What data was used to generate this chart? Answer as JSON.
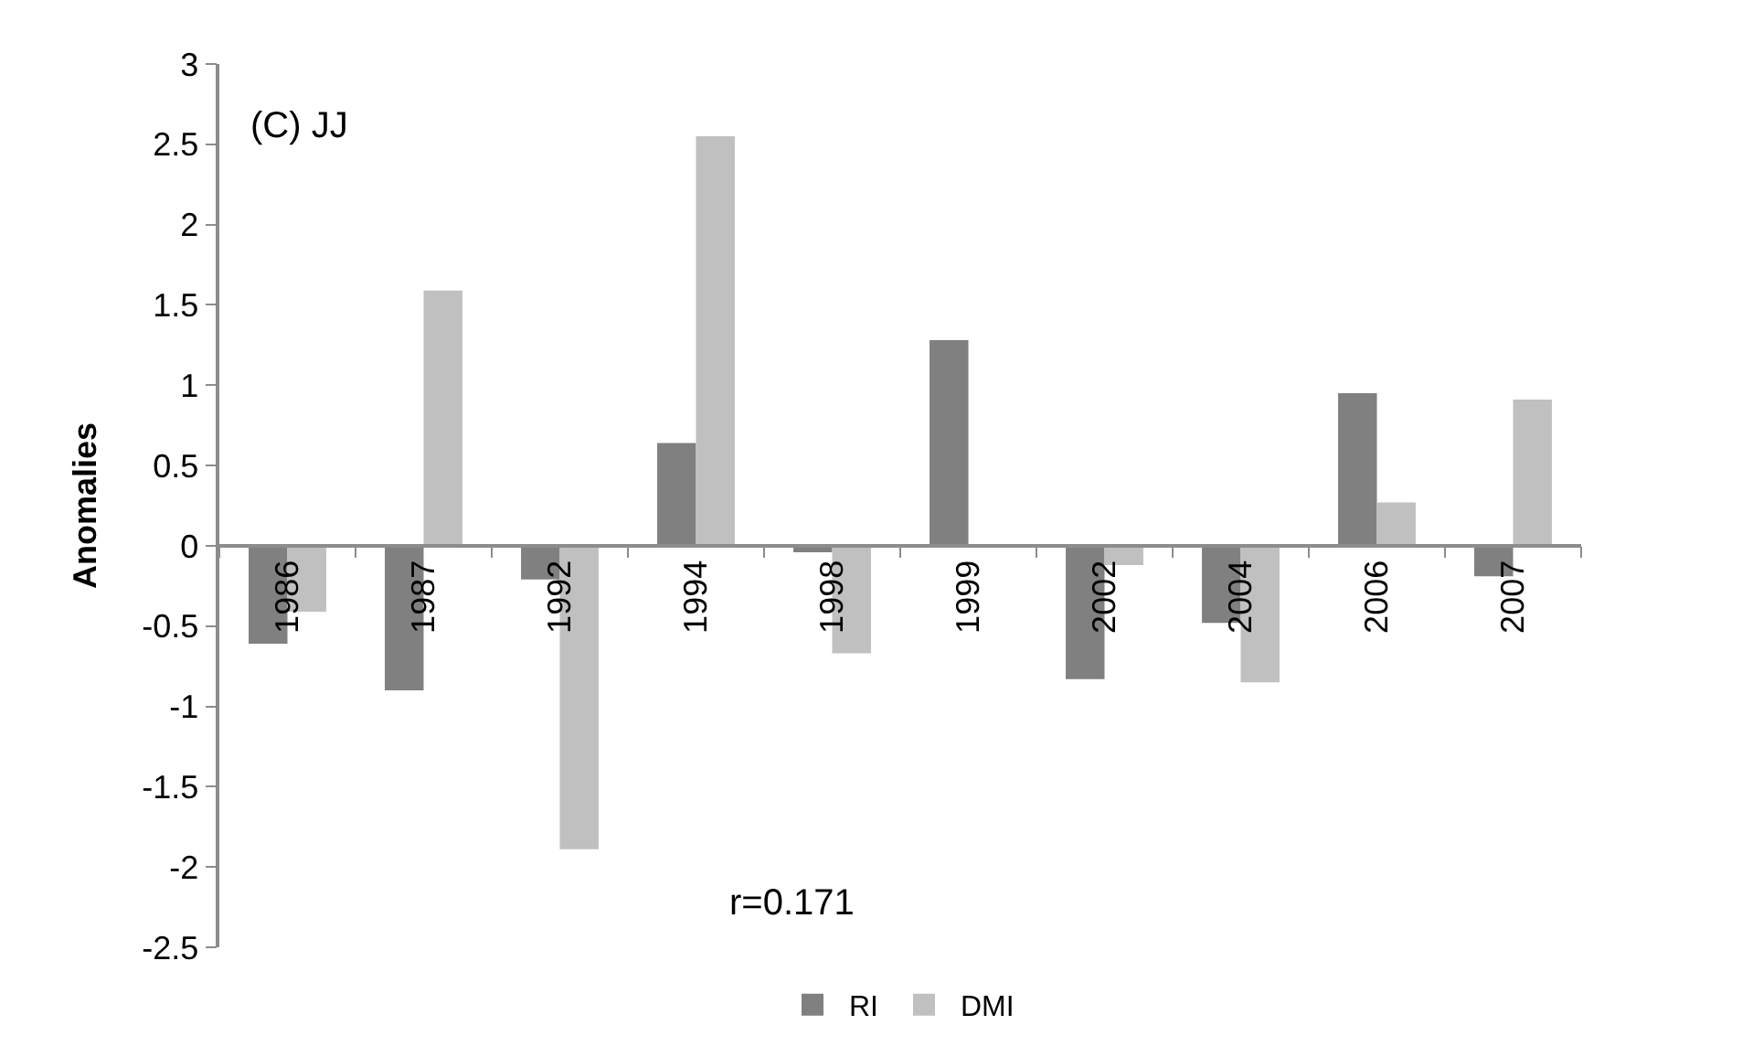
{
  "chart_data": {
    "type": "bar",
    "title": "(C) JJ",
    "ylabel": "Anomalies",
    "categories": [
      "1986",
      "1987",
      "1992",
      "1994",
      "1998",
      "1999",
      "2002",
      "2004",
      "2006",
      "2007"
    ],
    "series": [
      {
        "name": "RI",
        "color": "#808080",
        "values": [
          -0.61,
          -0.9,
          -0.21,
          0.64,
          -0.04,
          1.28,
          -0.83,
          -0.48,
          0.95,
          -0.19
        ]
      },
      {
        "name": "DMI",
        "color": "#c0c0c0",
        "values": [
          -0.41,
          1.59,
          -1.89,
          2.55,
          -0.67,
          null,
          -0.12,
          -0.85,
          0.27,
          0.91
        ]
      }
    ],
    "ylim": [
      -2.5,
      3
    ],
    "yticks": [
      3,
      2.5,
      2,
      1.5,
      1,
      0.5,
      0,
      -0.5,
      -1,
      -1.5,
      -2,
      -2.5
    ],
    "annotations": [
      "r=0.171"
    ],
    "grid": false,
    "legend": "bottom"
  }
}
